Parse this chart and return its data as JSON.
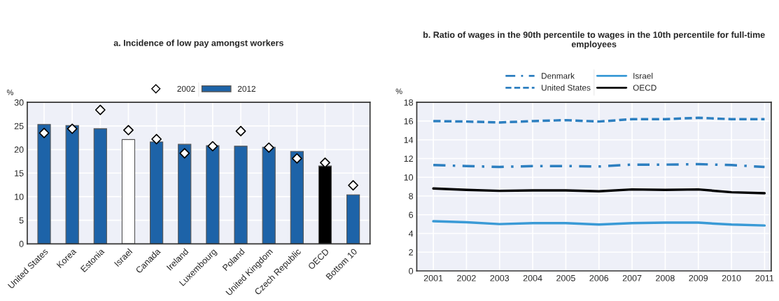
{
  "chart_data": [
    {
      "type": "bar",
      "title": "a. Incidence of low pay amongst workers",
      "ylabel": "%",
      "categories": [
        "United States",
        "Korea",
        "Estonia",
        "Israel",
        "Canada",
        "Ireland",
        "Luxembourg",
        "Poland",
        "United Kingdom",
        "Czech Republic",
        "OECD",
        "Bottom 10"
      ],
      "series": [
        {
          "name": "2012",
          "type": "bar",
          "color": "#1d63a8",
          "colors": [
            "#1d63a8",
            "#1d63a8",
            "#1d63a8",
            "#ffffff",
            "#1d63a8",
            "#1d63a8",
            "#1d63a8",
            "#1d63a8",
            "#1d63a8",
            "#1d63a8",
            "#000000",
            "#1d63a8"
          ],
          "values": [
            25.3,
            25.1,
            24.4,
            22.1,
            21.6,
            21.1,
            20.8,
            20.7,
            20.5,
            19.6,
            16.5,
            10.4
          ]
        },
        {
          "name": "2002",
          "type": "scatter",
          "marker": "diamond",
          "color": "#ffffff",
          "values": [
            23.5,
            24.4,
            28.4,
            24.1,
            22.2,
            19.2,
            20.7,
            23.9,
            20.4,
            18.1,
            17.2,
            12.4
          ]
        }
      ],
      "ylim": [
        0,
        30
      ],
      "yticks": [
        0,
        5,
        10,
        15,
        20,
        25,
        30
      ],
      "grid": true,
      "legend": "top"
    },
    {
      "type": "line",
      "title": "b. Ratio of wages in the 90th percentile to wages in the 10th percentile for full-time employees",
      "ylabel": "%",
      "x": [
        2001,
        2002,
        2003,
        2004,
        2005,
        2006,
        2007,
        2008,
        2009,
        2010,
        2011
      ],
      "series": [
        {
          "name": "Israel",
          "color": "#3a9ad6",
          "line_style": "solid",
          "values": [
            5.3,
            5.2,
            5.0,
            5.1,
            5.1,
            4.95,
            5.1,
            5.15,
            5.15,
            4.95,
            4.85
          ]
        },
        {
          "name": "OECD",
          "color": "#000000",
          "line_style": "solid",
          "values": [
            8.8,
            8.65,
            8.55,
            8.6,
            8.6,
            8.5,
            8.7,
            8.65,
            8.7,
            8.4,
            8.3
          ]
        },
        {
          "name": "Denmark",
          "color": "#2d7fc0",
          "line_style": "dashdot",
          "values": [
            11.3,
            11.2,
            11.1,
            11.2,
            11.2,
            11.15,
            11.35,
            11.35,
            11.4,
            11.3,
            11.1
          ]
        },
        {
          "name": "United States",
          "color": "#2d7fc0",
          "line_style": "dashed",
          "values": [
            16.0,
            15.95,
            15.85,
            16.0,
            16.1,
            15.95,
            16.2,
            16.2,
            16.35,
            16.2,
            16.2
          ]
        }
      ],
      "xlim": [
        2000.5,
        2011.2
      ],
      "xticks": [
        2001,
        2002,
        2003,
        2004,
        2005,
        2006,
        2007,
        2008,
        2009,
        2010,
        2011
      ],
      "ylim": [
        0,
        18
      ],
      "yticks": [
        0,
        2,
        4,
        6,
        8,
        10,
        12,
        14,
        16,
        18
      ],
      "grid": true,
      "legend": "top"
    }
  ]
}
